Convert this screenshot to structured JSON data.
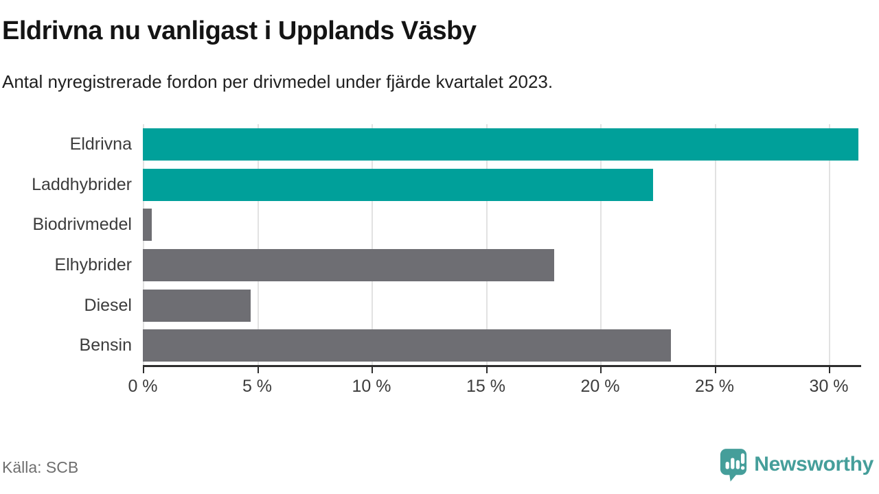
{
  "header": {
    "title": "Eldrivna nu vanligast i Upplands Väsby",
    "subtitle": "Antal nyregistrerade fordon per drivmedel under fjärde kvartalet 2023."
  },
  "chart_data": {
    "type": "bar",
    "orientation": "horizontal",
    "title": "Eldrivna nu vanligast i Upplands Väsby",
    "xlabel": "",
    "ylabel": "",
    "unit": "%",
    "categories": [
      "Eldrivna",
      "Laddhybrider",
      "Biodrivmedel",
      "Elhybrider",
      "Diesel",
      "Bensin"
    ],
    "values": [
      31.3,
      22.3,
      0.4,
      18,
      4.7,
      23.1
    ],
    "bar_colors": [
      "#00a09a",
      "#00a09a",
      "#6e6e73",
      "#6e6e73",
      "#6e6e73",
      "#6e6e73"
    ],
    "highlight_color": "#00a09a",
    "default_color": "#6e6e73",
    "xlim": [
      0,
      31.35
    ],
    "x_ticks": [
      0,
      5,
      10,
      15,
      20,
      25,
      30
    ],
    "x_tick_labels": [
      "0 %",
      "5 %",
      "10 %",
      "15 %",
      "20 %",
      "25 %",
      "30 %"
    ],
    "grid": "vertical",
    "gridline_color": "#e2e2e2",
    "legend": "none"
  },
  "footer": {
    "source": "Källa: SCB",
    "brand": "Newsworthy",
    "brand_color": "#459e9a"
  }
}
